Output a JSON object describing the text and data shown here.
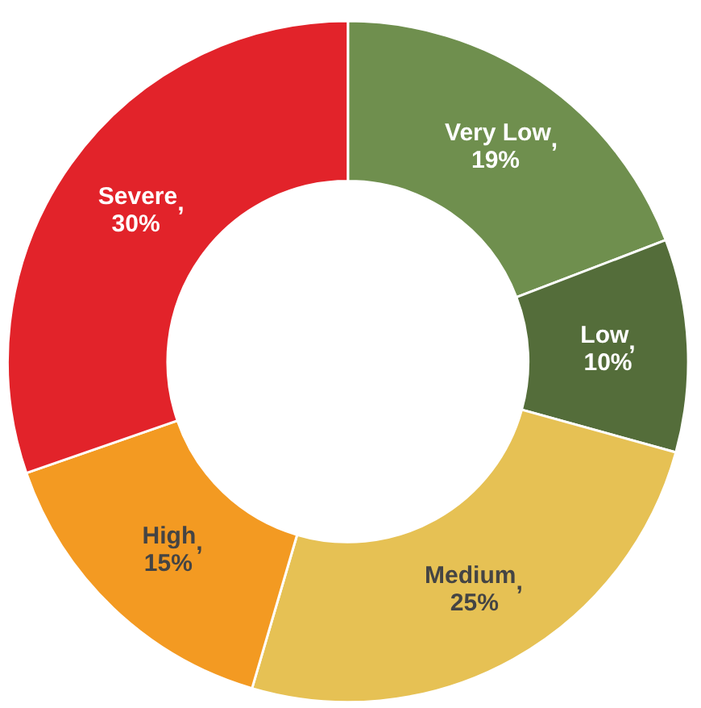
{
  "chart_data": {
    "type": "donut",
    "categories": [
      "Very Low",
      "Low",
      "Medium",
      "High",
      "Severe"
    ],
    "values": [
      19,
      10,
      25,
      15,
      30
    ],
    "colors": [
      "#6f8f4e",
      "#546d3a",
      "#e6c154",
      "#f39a22",
      "#e2232a"
    ],
    "value_labels": [
      ",\n19%",
      ",\n10%",
      ",\n25%",
      ",\n15%",
      ",\n30%"
    ],
    "legend": false
  }
}
